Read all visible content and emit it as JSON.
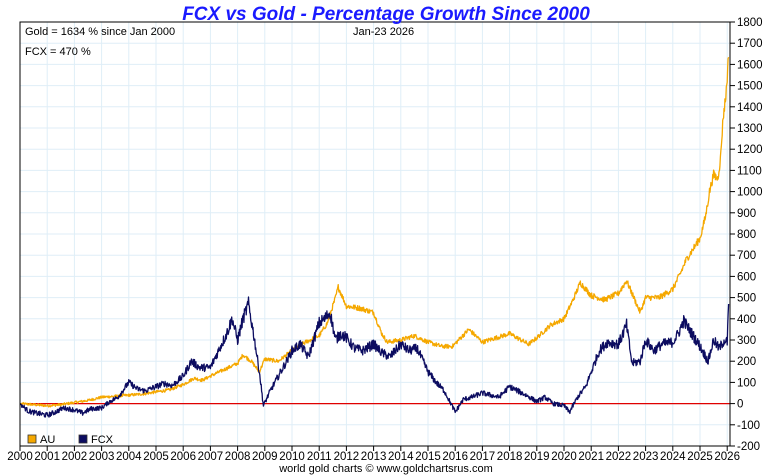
{
  "chart_data": {
    "type": "line",
    "title": "FCX vs Gold - Percentage Growth Since 2000",
    "annotations": {
      "gold_summary": "Gold = 1634 % since Jan 2000",
      "fcx_summary": "FCX = 470 %",
      "date": "Jan-23  2026"
    },
    "credit": "world gold charts © www.goldchartsrus.com",
    "xlabel": "",
    "ylabel": "",
    "xlim": [
      2000,
      2026.1
    ],
    "ylim": [
      -200,
      1800
    ],
    "grid": true,
    "legend_position": "bottom-left",
    "x_ticks": [
      "2000",
      "2001",
      "2002",
      "2003",
      "2004",
      "2005",
      "2006",
      "2007",
      "2008",
      "2009",
      "2010",
      "2011",
      "2012",
      "2013",
      "2014",
      "2015",
      "2016",
      "2017",
      "2018",
      "2019",
      "2020",
      "2021",
      "2022",
      "2023",
      "2024",
      "2025",
      "2026"
    ],
    "y_ticks": [
      "1800",
      "1700",
      "1600",
      "1500",
      "1400",
      "1300",
      "1200",
      "1100",
      "1000",
      "900",
      "800",
      "700",
      "600",
      "500",
      "400",
      "300",
      "200",
      "100",
      "0",
      "-100",
      "-200"
    ],
    "y_tick_values": [
      1800,
      1700,
      1600,
      1500,
      1400,
      1300,
      1200,
      1100,
      1000,
      900,
      800,
      700,
      600,
      500,
      400,
      300,
      200,
      100,
      0,
      -100,
      -200
    ],
    "reference_line": {
      "value": 0,
      "color": "#e00000"
    },
    "series": [
      {
        "name": "AU",
        "color": "#f5a800",
        "x": [
          2000,
          2000.5,
          2001,
          2001.5,
          2002,
          2002.5,
          2003,
          2003.5,
          2004,
          2004.5,
          2005,
          2005.5,
          2006,
          2006.4,
          2006.7,
          2007,
          2007.5,
          2008,
          2008.2,
          2008.5,
          2008.8,
          2009,
          2009.5,
          2010,
          2010.5,
          2011,
          2011.3,
          2011.6,
          2011.7,
          2012,
          2012.5,
          2013,
          2013.3,
          2013.5,
          2014,
          2014.5,
          2015,
          2015.5,
          2015.9,
          2016.5,
          2017,
          2017.5,
          2018,
          2018.7,
          2019,
          2019.5,
          2020,
          2020.3,
          2020.6,
          2021,
          2021.5,
          2022,
          2022.3,
          2022.8,
          2023,
          2023.5,
          2024,
          2024.3,
          2024.5,
          2024.8,
          2025,
          2025.2,
          2025.35,
          2025.5,
          2025.65,
          2025.75,
          2025.85,
          2025.95,
          2026.05
        ],
        "values": [
          0,
          -5,
          -10,
          -5,
          5,
          15,
          30,
          35,
          40,
          45,
          55,
          65,
          90,
          120,
          110,
          130,
          160,
          190,
          230,
          200,
          150,
          210,
          200,
          250,
          290,
          320,
          380,
          500,
          550,
          460,
          450,
          430,
          330,
          290,
          300,
          320,
          290,
          270,
          270,
          350,
          290,
          310,
          330,
          280,
          310,
          370,
          400,
          480,
          570,
          510,
          490,
          520,
          580,
          430,
          500,
          500,
          540,
          620,
          680,
          740,
          780,
          880,
          1000,
          1080,
          1060,
          1150,
          1350,
          1450,
          1634
        ]
      },
      {
        "name": "FCX",
        "color": "#0c0c60",
        "x": [
          2000,
          2000.3,
          2000.6,
          2001,
          2001.3,
          2001.6,
          2002,
          2002.3,
          2002.6,
          2003,
          2003.3,
          2003.6,
          2004,
          2004.3,
          2004.6,
          2005,
          2005.3,
          2005.6,
          2006,
          2006.3,
          2006.6,
          2007,
          2007.3,
          2007.6,
          2007.8,
          2008,
          2008.2,
          2008.4,
          2008.6,
          2008.8,
          2008.95,
          2009.2,
          2009.5,
          2009.8,
          2010,
          2010.3,
          2010.6,
          2011,
          2011.2,
          2011.4,
          2011.6,
          2011.8,
          2012,
          2012.3,
          2012.6,
          2013,
          2013.3,
          2013.6,
          2014,
          2014.3,
          2014.6,
          2015,
          2015.3,
          2015.6,
          2016,
          2016.3,
          2016.6,
          2017,
          2017.3,
          2017.6,
          2018,
          2018.3,
          2018.6,
          2019,
          2019.3,
          2019.6,
          2020,
          2020.2,
          2020.5,
          2020.8,
          2021,
          2021.3,
          2021.6,
          2022,
          2022.3,
          2022.5,
          2022.8,
          2023,
          2023.3,
          2023.6,
          2024,
          2024.2,
          2024.4,
          2024.7,
          2025,
          2025.3,
          2025.5,
          2025.7,
          2025.9,
          2026,
          2026.05
        ],
        "values": [
          0,
          -35,
          -45,
          -55,
          -40,
          -20,
          -30,
          -45,
          -25,
          -20,
          10,
          30,
          100,
          70,
          60,
          80,
          95,
          85,
          130,
          200,
          170,
          170,
          250,
          330,
          400,
          300,
          400,
          470,
          320,
          150,
          -10,
          60,
          130,
          200,
          250,
          280,
          220,
          380,
          400,
          430,
          300,
          330,
          310,
          260,
          250,
          280,
          240,
          220,
          280,
          250,
          260,
          150,
          100,
          60,
          -40,
          20,
          30,
          50,
          40,
          30,
          80,
          60,
          40,
          10,
          30,
          0,
          -10,
          -40,
          30,
          80,
          150,
          250,
          290,
          280,
          370,
          190,
          200,
          300,
          250,
          280,
          290,
          330,
          390,
          330,
          270,
          200,
          300,
          260,
          300,
          290,
          470
        ]
      }
    ]
  }
}
